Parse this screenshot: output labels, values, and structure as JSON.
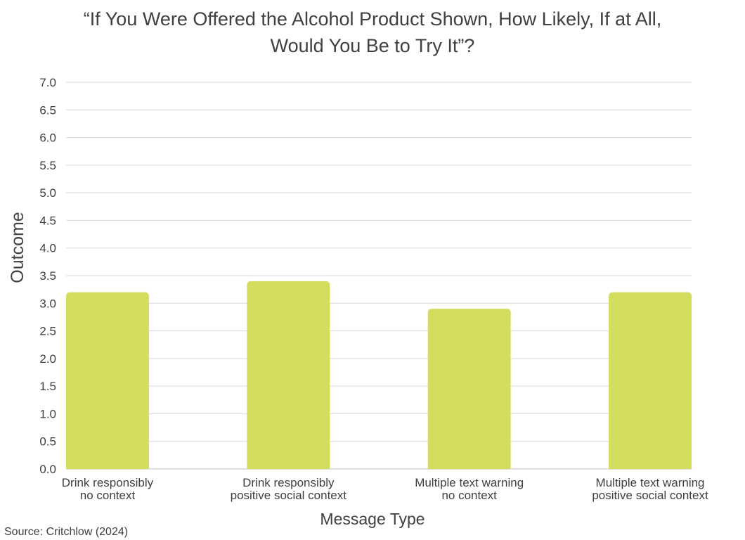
{
  "title_lines": [
    "“If You Were Offered the Alcohol Product Shown, How Likely, If at All,",
    "Would You Be to Try It”?"
  ],
  "source": "Source: Critchlow (2024)",
  "colors": {
    "bar": "#d4dc5e",
    "grid": "#d9d9d9",
    "axis": "#bfbfbf",
    "text": "#404040"
  },
  "chart_data": {
    "type": "bar",
    "title": "“If You Were Offered the Alcohol Product Shown, How Likely, If at All, Would You Be to Try It”?",
    "categories": [
      [
        "Drink responsibly",
        "no context"
      ],
      [
        "Drink responsibly",
        "positive social context"
      ],
      [
        "Multiple text warning",
        "no context"
      ],
      [
        "Multiple text warning",
        "positive social context"
      ]
    ],
    "values": [
      3.2,
      3.4,
      2.9,
      3.2
    ],
    "xlabel": "Message Type",
    "ylabel": "Outcome",
    "ylim": [
      0,
      7.0
    ],
    "yticks": [
      "0.0",
      "0.5",
      "1.0",
      "1.5",
      "2.0",
      "2.5",
      "3.0",
      "3.5",
      "4.0",
      "4.5",
      "5.0",
      "5.5",
      "6.0",
      "6.5",
      "7.0"
    ],
    "grid": true,
    "legend": "none"
  }
}
